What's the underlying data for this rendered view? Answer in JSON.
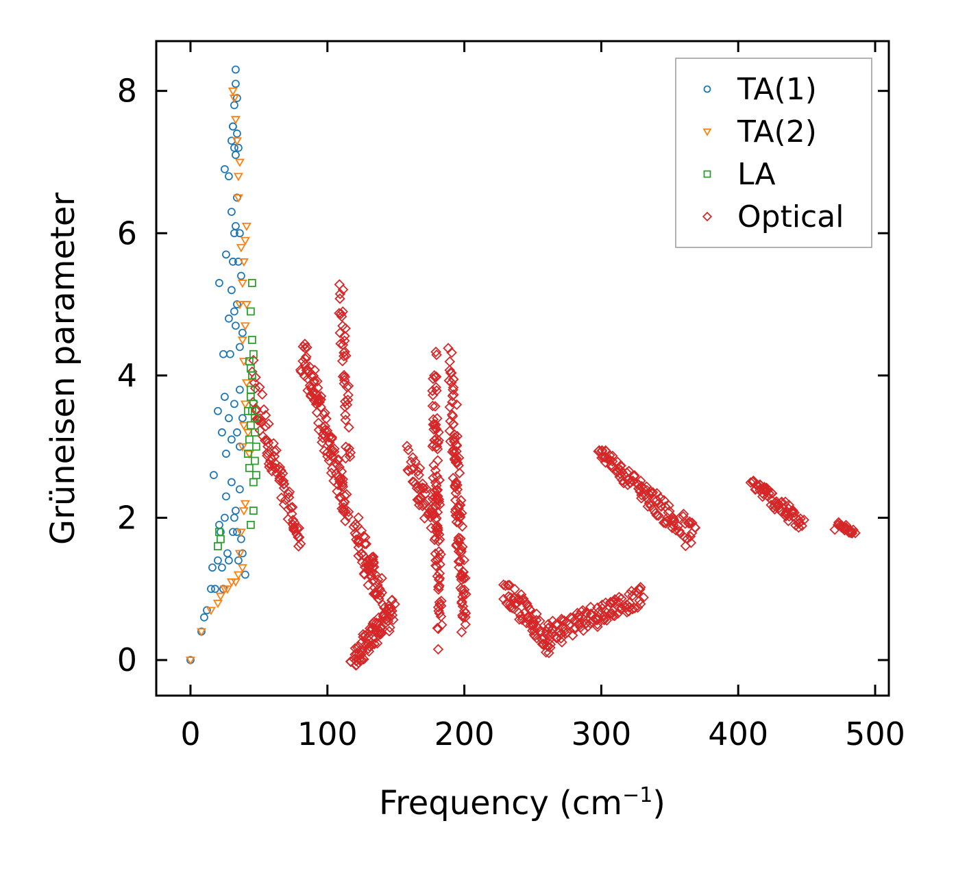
{
  "chart_data": {
    "type": "scatter",
    "title": "",
    "xlabel": "Frequency (cm",
    "xlabel_sup": "−1",
    "xlabel_close": ")",
    "ylabel": "Grüneisen parameter",
    "xlim": [
      -25,
      510
    ],
    "ylim": [
      -0.5,
      8.7
    ],
    "xticks": [
      0,
      100,
      200,
      300,
      400,
      500
    ],
    "yticks": [
      0,
      2,
      4,
      6,
      8
    ],
    "legend_position": "top-right",
    "series": [
      {
        "name": "TA(1)",
        "color": "#1f77b4",
        "marker": "circle",
        "points": [
          [
            0,
            0
          ],
          [
            8,
            0.4
          ],
          [
            10,
            0.6
          ],
          [
            12,
            0.7
          ],
          [
            15,
            1.0
          ],
          [
            16,
            1.3
          ],
          [
            18,
            1.0
          ],
          [
            20,
            1.4
          ],
          [
            21,
            1.9
          ],
          [
            22,
            1.8
          ],
          [
            23,
            1.3
          ],
          [
            24,
            1.0
          ],
          [
            25,
            2.0
          ],
          [
            26,
            2.3
          ],
          [
            27,
            1.5
          ],
          [
            28,
            1.4
          ],
          [
            30,
            2.5
          ],
          [
            31,
            1.8
          ],
          [
            32,
            2.0
          ],
          [
            33,
            2.1
          ],
          [
            34,
            1.8
          ],
          [
            35,
            1.4
          ],
          [
            36,
            2.4
          ],
          [
            37,
            1.7
          ],
          [
            38,
            1.5
          ],
          [
            40,
            1.2
          ],
          [
            17,
            2.6
          ],
          [
            20,
            3.5
          ],
          [
            23,
            3.2
          ],
          [
            25,
            3.7
          ],
          [
            26,
            2.9
          ],
          [
            28,
            3.4
          ],
          [
            30,
            3.1
          ],
          [
            32,
            3.6
          ],
          [
            34,
            3.2
          ],
          [
            36,
            3.0
          ],
          [
            38,
            3.4
          ],
          [
            21,
            5.3
          ],
          [
            24,
            4.3
          ],
          [
            26,
            5.7
          ],
          [
            28,
            4.8
          ],
          [
            30,
            5.2
          ],
          [
            32,
            4.9
          ],
          [
            34,
            5.0
          ],
          [
            36,
            4.4
          ],
          [
            38,
            4.6
          ],
          [
            30,
            6.3
          ],
          [
            31,
            5.6
          ],
          [
            32,
            6.0
          ],
          [
            33,
            6.1
          ],
          [
            34,
            6.5
          ],
          [
            35,
            5.6
          ],
          [
            36,
            6.0
          ],
          [
            37,
            5.4
          ],
          [
            25,
            6.9
          ],
          [
            28,
            6.8
          ],
          [
            30,
            7.3
          ],
          [
            31,
            7.5
          ],
          [
            32,
            7.2
          ],
          [
            33,
            7.1
          ],
          [
            34,
            7.4
          ],
          [
            35,
            7.2
          ],
          [
            32,
            7.8
          ],
          [
            33,
            8.1
          ],
          [
            34,
            7.9
          ],
          [
            33,
            8.3
          ],
          [
            31,
            7.5
          ],
          [
            29,
            4.3
          ],
          [
            33,
            4.7
          ],
          [
            36,
            3.8
          ]
        ]
      },
      {
        "name": "TA(2)",
        "color": "#ff7f0e",
        "marker": "triangle-down",
        "points": [
          [
            0,
            0
          ],
          [
            8,
            0.4
          ],
          [
            15,
            0.7
          ],
          [
            20,
            0.8
          ],
          [
            22,
            0.9
          ],
          [
            25,
            1.0
          ],
          [
            27,
            1.0
          ],
          [
            30,
            1.1
          ],
          [
            33,
            1.1
          ],
          [
            35,
            1.2
          ],
          [
            38,
            1.3
          ],
          [
            36,
            1.5
          ],
          [
            37,
            1.8
          ],
          [
            39,
            2.1
          ],
          [
            40,
            2.2
          ],
          [
            38,
            3.0
          ],
          [
            39,
            3.3
          ],
          [
            40,
            3.6
          ],
          [
            41,
            3.9
          ],
          [
            38,
            4.5
          ],
          [
            40,
            4.7
          ],
          [
            41,
            5.0
          ],
          [
            38,
            5.3
          ],
          [
            39,
            5.6
          ],
          [
            40,
            5.9
          ],
          [
            41,
            6.1
          ],
          [
            35,
            6.8
          ],
          [
            36,
            7.0
          ],
          [
            34,
            7.3
          ],
          [
            33,
            7.6
          ],
          [
            32,
            7.9
          ],
          [
            31,
            8.0
          ],
          [
            39,
            4.2
          ],
          [
            37,
            5.8
          ],
          [
            36,
            5.0
          ],
          [
            35,
            6.5
          ],
          [
            42,
            3.2
          ],
          [
            43,
            2.9
          ]
        ]
      },
      {
        "name": "LA",
        "color": "#2ca02c",
        "marker": "square",
        "points": [
          [
            20,
            1.6
          ],
          [
            21,
            1.8
          ],
          [
            22,
            1.7
          ],
          [
            42,
            2.9
          ],
          [
            43,
            3.1
          ],
          [
            44,
            3.3
          ],
          [
            45,
            3.5
          ],
          [
            46,
            3.6
          ],
          [
            47,
            3.2
          ],
          [
            44,
            3.8
          ],
          [
            45,
            4.0
          ],
          [
            43,
            4.2
          ],
          [
            45,
            4.5
          ],
          [
            46,
            4.3
          ],
          [
            44,
            4.1
          ],
          [
            45,
            5.3
          ],
          [
            44,
            4.9
          ],
          [
            46,
            2.5
          ],
          [
            47,
            2.8
          ],
          [
            48,
            3.0
          ],
          [
            44,
            1.9
          ],
          [
            46,
            2.1
          ],
          [
            43,
            2.7
          ],
          [
            42,
            3.5
          ],
          [
            44,
            3.7
          ],
          [
            47,
            3.4
          ],
          [
            48,
            2.6
          ]
        ]
      },
      {
        "name": "Optical",
        "color": "#d62728",
        "marker": "diamond",
        "segments": [
          {
            "from": [
              45,
              3.8
            ],
            "to": [
              80,
              1.65
            ],
            "width": [
              0.9,
              0.15
            ],
            "n": 80
          },
          {
            "from": [
              82,
              4.3
            ],
            "to": [
              115,
              2.1
            ],
            "width": [
              0.6,
              0.4
            ],
            "n": 110
          },
          {
            "from": [
              110,
              5.2
            ],
            "to": [
              115,
              3.0
            ],
            "width": [
              0.4,
              0.7
            ],
            "n": 40
          },
          {
            "from": [
              118,
              0.0
            ],
            "to": [
              148,
              0.7
            ],
            "width": [
              0.3,
              0.4
            ],
            "n": 80
          },
          {
            "from": [
              120,
              1.8
            ],
            "to": [
              140,
              0.9
            ],
            "width": [
              0.6,
              0.5
            ],
            "n": 60
          },
          {
            "from": [
              160,
              2.8
            ],
            "to": [
              180,
              1.9
            ],
            "width": [
              0.5,
              0.5
            ],
            "n": 50
          },
          {
            "from": [
              178,
              4.0
            ],
            "to": [
              182,
              0.45
            ],
            "width": [
              1.0,
              0.6
            ],
            "n": 90
          },
          {
            "from": [
              190,
              4.0
            ],
            "to": [
              200,
              0.6
            ],
            "width": [
              1.2,
              0.6
            ],
            "n": 110
          },
          {
            "from": [
              230,
              1.0
            ],
            "to": [
              262,
              0.25
            ],
            "width": [
              0.3,
              0.4
            ],
            "n": 70
          },
          {
            "from": [
              260,
              0.35
            ],
            "to": [
              330,
              0.9
            ],
            "width": [
              0.4,
              0.25
            ],
            "n": 110
          },
          {
            "from": [
              298,
              2.95
            ],
            "to": [
              368,
              1.7
            ],
            "width": [
              0.12,
              0.45
            ],
            "n": 110
          },
          {
            "from": [
              410,
              2.5
            ],
            "to": [
              447,
              1.9
            ],
            "width": [
              0.15,
              0.3
            ],
            "n": 70
          },
          {
            "from": [
              472,
              1.88
            ],
            "to": [
              485,
              1.82
            ],
            "width": [
              0.12,
              0.1
            ],
            "n": 25
          }
        ]
      }
    ]
  }
}
